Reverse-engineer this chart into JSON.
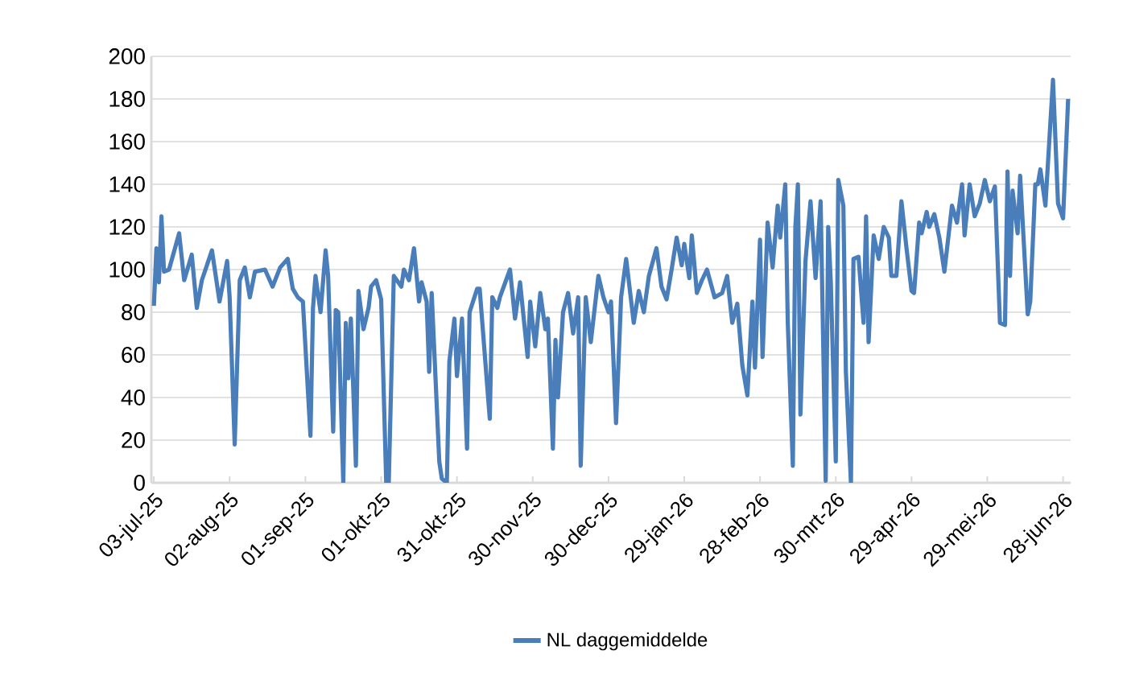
{
  "chart_data": {
    "type": "line",
    "x": [
      "2025-07-03",
      "2025-07-04",
      "2025-07-05",
      "2025-07-06",
      "2025-07-07",
      "2025-07-09",
      "2025-07-13",
      "2025-07-15",
      "2025-07-18",
      "2025-07-20",
      "2025-07-22",
      "2025-07-26",
      "2025-07-29",
      "2025-08-01",
      "2025-08-02",
      "2025-08-04",
      "2025-08-06",
      "2025-08-08",
      "2025-08-10",
      "2025-08-12",
      "2025-08-16",
      "2025-08-19",
      "2025-08-22",
      "2025-08-25",
      "2025-08-27",
      "2025-08-29",
      "2025-08-31",
      "2025-09-03",
      "2025-09-04",
      "2025-09-05",
      "2025-09-07",
      "2025-09-09",
      "2025-09-10",
      "2025-09-12",
      "2025-09-13",
      "2025-09-14",
      "2025-09-16",
      "2025-09-17",
      "2025-09-18",
      "2025-09-19",
      "2025-09-21",
      "2025-09-22",
      "2025-09-24",
      "2025-09-26",
      "2025-09-27",
      "2025-09-29",
      "2025-10-01",
      "2025-10-03",
      "2025-10-04",
      "2025-10-06",
      "2025-10-09",
      "2025-10-10",
      "2025-10-12",
      "2025-10-14",
      "2025-10-16",
      "2025-10-17",
      "2025-10-19",
      "2025-10-20",
      "2025-10-21",
      "2025-10-24",
      "2025-10-25",
      "2025-10-27",
      "2025-10-28",
      "2025-10-30",
      "2025-10-31",
      "2025-11-02",
      "2025-11-04",
      "2025-11-05",
      "2025-11-08",
      "2025-11-09",
      "2025-11-13",
      "2025-11-14",
      "2025-11-16",
      "2025-11-17",
      "2025-11-21",
      "2025-11-23",
      "2025-11-25",
      "2025-11-28",
      "2025-11-29",
      "2025-12-01",
      "2025-12-03",
      "2025-12-05",
      "2025-12-06",
      "2025-12-08",
      "2025-12-09",
      "2025-12-10",
      "2025-12-12",
      "2025-12-14",
      "2025-12-16",
      "2025-12-18",
      "2025-12-19",
      "2025-12-21",
      "2025-12-23",
      "2025-12-26",
      "2025-12-28",
      "2025-12-30",
      "2025-12-31",
      "2026-01-02",
      "2026-01-04",
      "2026-01-06",
      "2026-01-09",
      "2026-01-11",
      "2026-01-13",
      "2026-01-15",
      "2026-01-18",
      "2026-01-20",
      "2026-01-22",
      "2026-01-24",
      "2026-01-26",
      "2026-01-28",
      "2026-01-29",
      "2026-01-31",
      "2026-02-01",
      "2026-02-03",
      "2026-02-05",
      "2026-02-07",
      "2026-02-10",
      "2026-02-13",
      "2026-02-15",
      "2026-02-17",
      "2026-02-19",
      "2026-02-21",
      "2026-02-23",
      "2026-02-25",
      "2026-02-26",
      "2026-02-28",
      "2026-03-01",
      "2026-03-03",
      "2026-03-05",
      "2026-03-07",
      "2026-03-08",
      "2026-03-10",
      "2026-03-11",
      "2026-03-13",
      "2026-03-14",
      "2026-03-15",
      "2026-03-16",
      "2026-03-18",
      "2026-03-20",
      "2026-03-22",
      "2026-03-24",
      "2026-03-26",
      "2026-03-27",
      "2026-03-28",
      "2026-03-30",
      "2026-03-31",
      "2026-04-02",
      "2026-04-03",
      "2026-04-05",
      "2026-04-06",
      "2026-04-08",
      "2026-04-10",
      "2026-04-11",
      "2026-04-12",
      "2026-04-14",
      "2026-04-16",
      "2026-04-18",
      "2026-04-20",
      "2026-04-21",
      "2026-04-23",
      "2026-04-25",
      "2026-04-27",
      "2026-04-29",
      "2026-04-30",
      "2026-05-02",
      "2026-05-03",
      "2026-05-05",
      "2026-05-06",
      "2026-05-08",
      "2026-05-10",
      "2026-05-12",
      "2026-05-15",
      "2026-05-17",
      "2026-05-19",
      "2026-05-20",
      "2026-05-22",
      "2026-05-24",
      "2026-05-26",
      "2026-05-28",
      "2026-05-30",
      "2026-06-01",
      "2026-06-03",
      "2026-06-05",
      "2026-06-06",
      "2026-06-07",
      "2026-06-08",
      "2026-06-10",
      "2026-06-11",
      "2026-06-14",
      "2026-06-15",
      "2026-06-17",
      "2026-06-18",
      "2026-06-19",
      "2026-06-21",
      "2026-06-24",
      "2026-06-26",
      "2026-06-28",
      "2026-06-30"
    ],
    "series": [
      {
        "name": "NL daggemiddelde",
        "color": "#4a7ebb",
        "values": [
          83,
          110,
          94,
          125,
          99,
          100,
          117,
          95,
          107,
          82,
          95,
          109,
          85,
          104,
          87,
          18,
          95,
          101,
          87,
          99,
          100,
          92,
          101,
          105,
          91,
          87,
          85,
          22,
          82,
          97,
          80,
          109,
          97,
          24,
          81,
          80,
          0,
          75,
          49,
          77,
          8,
          90,
          72,
          82,
          92,
          95,
          86,
          0,
          0,
          97,
          92,
          100,
          95,
          110,
          85,
          94,
          85,
          52,
          89,
          10,
          2,
          0,
          57,
          77,
          50,
          77,
          16,
          80,
          91,
          91,
          30,
          87,
          82,
          87,
          100,
          77,
          94,
          59,
          85,
          64,
          89,
          72,
          77,
          16,
          67,
          40,
          80,
          89,
          70,
          87,
          8,
          87,
          66,
          97,
          87,
          80,
          85,
          28,
          87,
          105,
          75,
          90,
          80,
          97,
          110,
          92,
          86,
          100,
          115,
          102,
          112,
          96,
          116,
          89,
          95,
          100,
          87,
          89,
          97,
          75,
          84,
          55,
          41,
          85,
          54,
          114,
          59,
          122,
          101,
          130,
          115,
          140,
          75,
          8,
          120,
          140,
          32,
          104,
          132,
          96,
          132,
          1,
          120,
          95,
          10,
          142,
          130,
          52,
          0,
          105,
          106,
          75,
          125,
          66,
          116,
          105,
          120,
          115,
          97,
          97,
          132,
          110,
          90,
          89,
          122,
          117,
          127,
          120,
          126,
          115,
          99,
          130,
          122,
          140,
          116,
          140,
          125,
          131,
          142,
          132,
          139,
          75,
          74,
          146,
          97,
          137,
          117,
          144,
          79,
          85,
          140,
          140,
          147,
          130,
          189,
          131,
          124,
          180
        ]
      }
    ],
    "xlim": [
      "2025-07-02",
      "2026-07-01"
    ],
    "xticks": [
      {
        "value": "2025-07-03",
        "label": "03-jul-25"
      },
      {
        "value": "2025-08-02",
        "label": "02-aug-25"
      },
      {
        "value": "2025-09-01",
        "label": "01-sep-25"
      },
      {
        "value": "2025-10-01",
        "label": "01-okt-25"
      },
      {
        "value": "2025-10-31",
        "label": "31-okt-25"
      },
      {
        "value": "2025-11-30",
        "label": "30-nov-25"
      },
      {
        "value": "2025-12-30",
        "label": "30-dec-25"
      },
      {
        "value": "2026-01-29",
        "label": "29-jan-26"
      },
      {
        "value": "2026-02-28",
        "label": "28-feb-26"
      },
      {
        "value": "2026-03-30",
        "label": "30-mrt-26"
      },
      {
        "value": "2026-04-29",
        "label": "29-apr-26"
      },
      {
        "value": "2026-05-29",
        "label": "29-mei-26"
      },
      {
        "value": "2026-06-28",
        "label": "28-jun-26"
      }
    ],
    "ylim": [
      0,
      200
    ],
    "yticks": [
      0,
      20,
      40,
      60,
      80,
      100,
      120,
      140,
      160,
      180,
      200
    ],
    "grid": "y",
    "legend": "bottom"
  }
}
